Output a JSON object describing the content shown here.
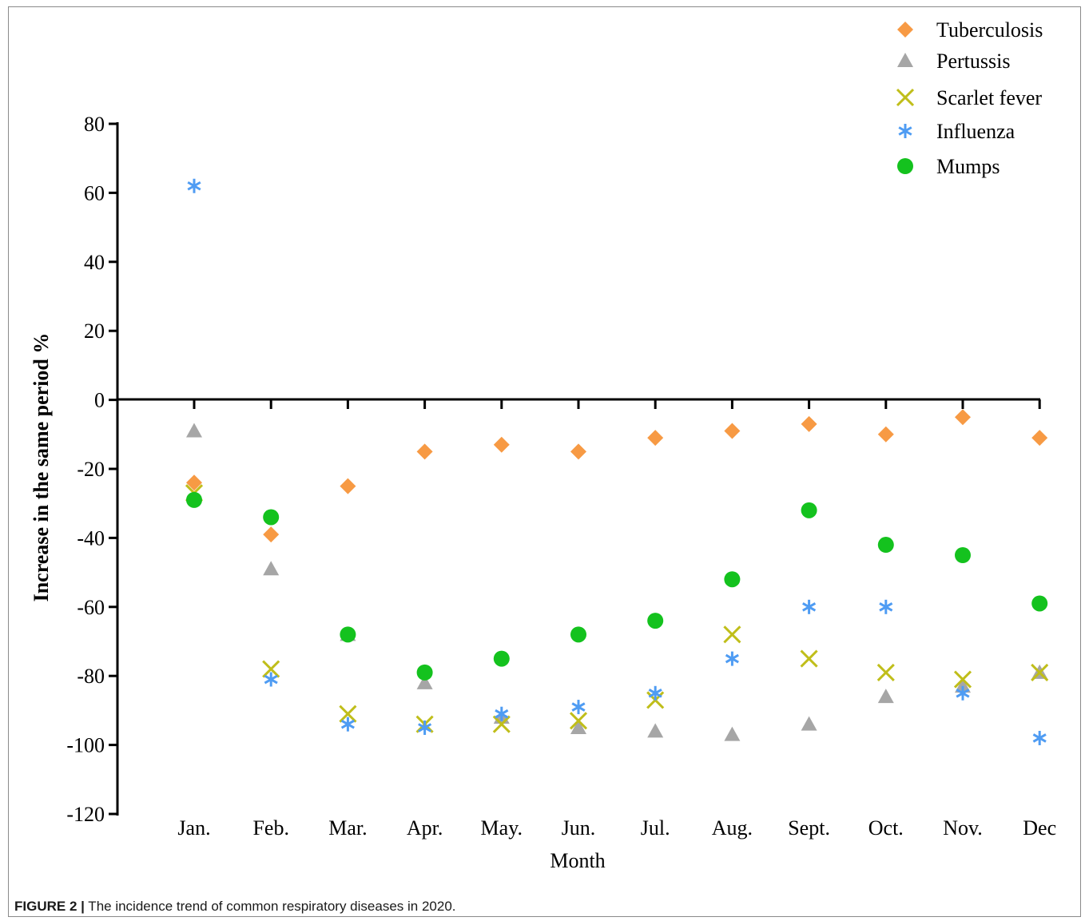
{
  "caption": {
    "label": "FIGURE 2 |",
    "text": " The incidence trend of common respiratory diseases in 2020."
  },
  "chart_data": {
    "type": "scatter",
    "title": "",
    "xlabel": "Month",
    "ylabel": "Increase in the same period  %",
    "ylim": [
      -120,
      80
    ],
    "yticks": [
      80,
      60,
      40,
      20,
      0,
      -20,
      -40,
      -60,
      -80,
      -100,
      -120
    ],
    "categories": [
      "Jan.",
      "Feb.",
      "Mar.",
      "Apr.",
      "May.",
      "Jun.",
      "Jul.",
      "Aug.",
      "Sept.",
      "Oct.",
      "Nov.",
      "Dec"
    ],
    "grid": false,
    "legend": "top-right",
    "series": [
      {
        "name": "Tuberculosis",
        "marker": "diamond",
        "color": "#F79A44",
        "values": [
          -24,
          -39,
          -25,
          -15,
          -13,
          -15,
          -11,
          -9,
          -7,
          -10,
          -5,
          -11
        ]
      },
      {
        "name": "Pertussis",
        "marker": "triangle",
        "color": "#A6A6A6",
        "values": [
          -9,
          -49,
          -68,
          -82,
          -92,
          -95,
          -96,
          -97,
          -94,
          -86,
          -83,
          -79
        ]
      },
      {
        "name": "Scarlet fever",
        "marker": "cross",
        "color": "#C0BE1A",
        "values": [
          -27,
          -78,
          -91,
          -94,
          -94,
          -93,
          -87,
          -68,
          -75,
          -79,
          -81,
          -79
        ]
      },
      {
        "name": "Influenza",
        "marker": "asterisk",
        "color": "#4F9CF3",
        "values": [
          62,
          -81,
          -94,
          -95,
          -91,
          -89,
          -85,
          -75,
          -60,
          -60,
          -85,
          -98
        ]
      },
      {
        "name": "Mumps",
        "marker": "circle",
        "color": "#14C21E",
        "values": [
          -29,
          -34,
          -68,
          -79,
          -75,
          -68,
          -64,
          -52,
          -32,
          -42,
          -45,
          -59
        ]
      }
    ]
  }
}
